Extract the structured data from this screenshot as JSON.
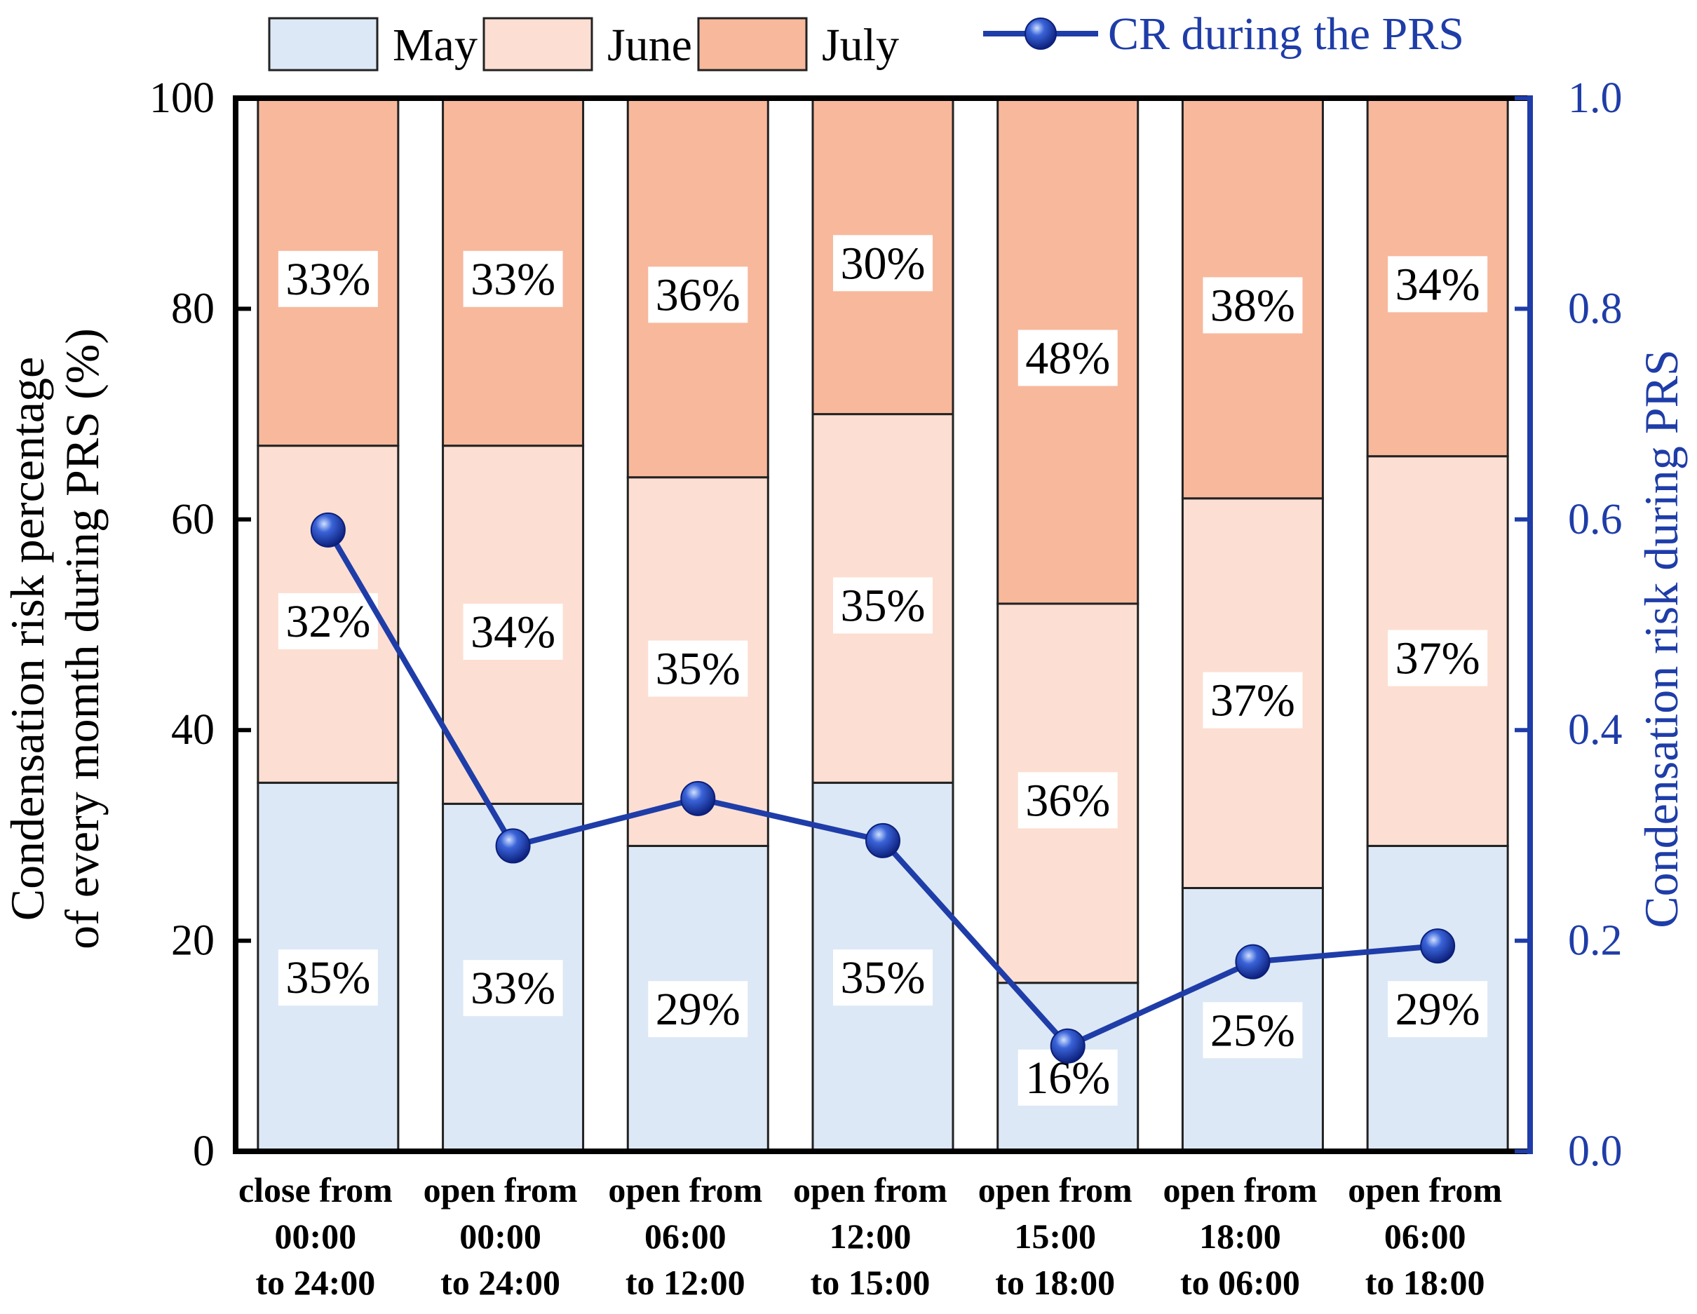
{
  "chart_data": {
    "type": "bar",
    "stacked": true,
    "categories": [
      [
        "close from",
        "00:00",
        "to 24:00"
      ],
      [
        "open from",
        "00:00",
        "to 24:00"
      ],
      [
        "open from",
        "06:00",
        "to 12:00"
      ],
      [
        "open from",
        "12:00",
        "to 15:00"
      ],
      [
        "open from",
        "15:00",
        "to 18:00"
      ],
      [
        "open from",
        "18:00",
        "to 06:00"
      ],
      [
        "open from",
        "06:00",
        "to 18:00"
      ]
    ],
    "series": [
      {
        "name": "May",
        "color": "#dce8f5",
        "values": [
          35,
          33,
          29,
          35,
          16,
          25,
          29
        ],
        "labels": [
          "35%",
          "33%",
          "29%",
          "35%",
          "16%",
          "25%",
          "29%"
        ]
      },
      {
        "name": "June",
        "color": "#fcdfd2",
        "values": [
          32,
          34,
          35,
          35,
          36,
          37,
          37
        ],
        "labels": [
          "32%",
          "34%",
          "35%",
          "35%",
          "36%",
          "37%",
          "37%"
        ]
      },
      {
        "name": "July",
        "color": "#f8b89c",
        "values": [
          33,
          33,
          36,
          30,
          48,
          38,
          34
        ],
        "labels": [
          "33%",
          "33%",
          "36%",
          "30%",
          "48%",
          "38%",
          "34%"
        ]
      }
    ],
    "line_series": {
      "name": "CR during the PRS",
      "axis": "right",
      "color": "#1f3da8",
      "values": [
        0.59,
        0.29,
        0.335,
        0.295,
        0.1,
        0.18,
        0.195
      ]
    },
    "ylabel_left": [
      "Condensation risk percentage",
      "of every momth during PRS (%)"
    ],
    "ylabel_right": "Condensation risk during PRS",
    "ylim_left": [
      0,
      100
    ],
    "ylim_right": [
      0,
      1.0
    ],
    "yticks_left": [
      "0",
      "20",
      "40",
      "60",
      "80",
      "100"
    ],
    "yticks_right": [
      "0.0",
      "0.2",
      "0.4",
      "0.6",
      "0.8",
      "1.0"
    ],
    "legend_position": "top"
  }
}
